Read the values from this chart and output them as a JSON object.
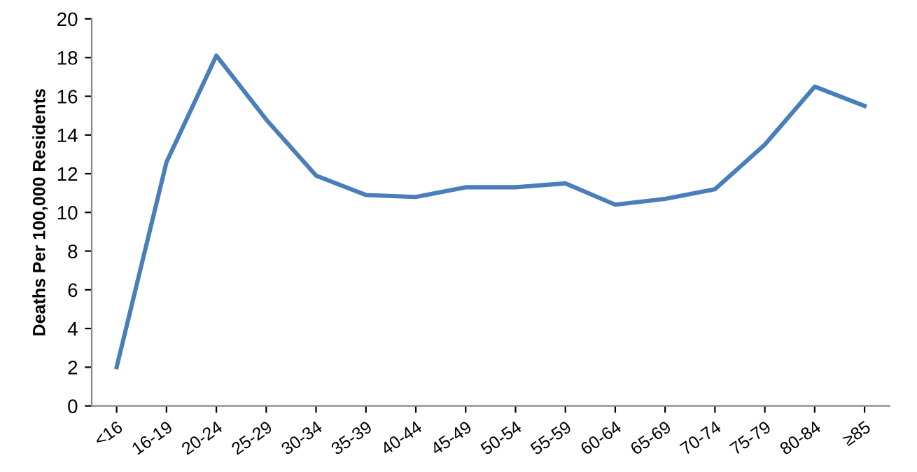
{
  "chart_data": {
    "type": "line",
    "ylabel": "Deaths Per 100,000 Residents",
    "categories": [
      "<16",
      "16-19",
      "20-24",
      "25-29",
      "30-34",
      "35-39",
      "40-44",
      "45-49",
      "50-54",
      "55-59",
      "60-64",
      "65-69",
      "70-74",
      "75-79",
      "80-84",
      "≥85"
    ],
    "series": [
      {
        "color": "#4a7ebb",
        "values": [
          2.0,
          12.6,
          18.1,
          14.8,
          11.9,
          10.9,
          10.8,
          11.3,
          11.3,
          11.5,
          10.4,
          10.7,
          11.2,
          13.5,
          16.5,
          15.5
        ]
      }
    ],
    "ylim": [
      0,
      20
    ],
    "yticks": [
      0,
      2,
      4,
      6,
      8,
      10,
      12,
      14,
      16,
      18,
      20
    ],
    "grid": false,
    "legend": false
  }
}
